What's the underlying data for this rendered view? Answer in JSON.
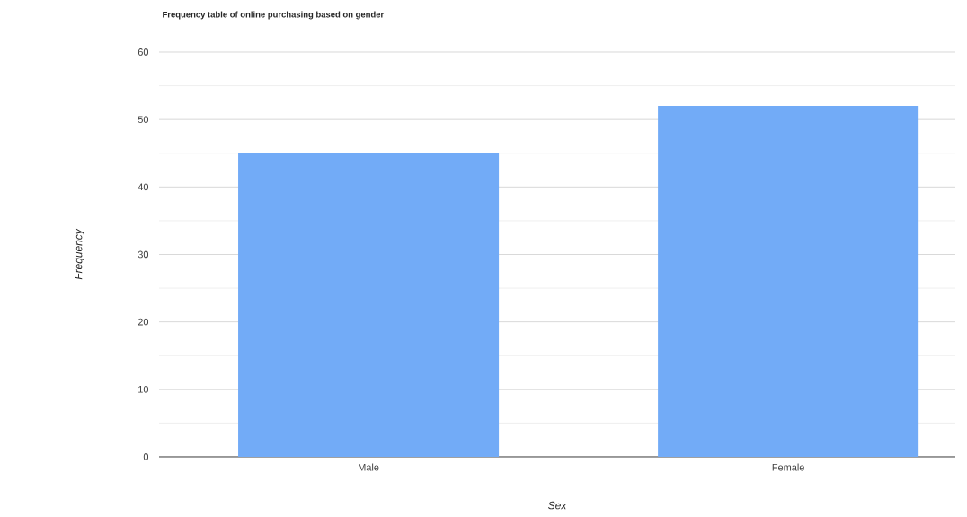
{
  "chart_data": {
    "type": "bar",
    "title": "Frequency table of online purchasing based on gender",
    "xlabel": "Sex",
    "ylabel": "Frequency",
    "categories": [
      "Male",
      "Female"
    ],
    "values": [
      45,
      52
    ],
    "color": "#72abf7",
    "ylim": [
      0,
      60
    ],
    "yticks": [
      0,
      10,
      20,
      30,
      40,
      50,
      60
    ],
    "grid": "y"
  }
}
